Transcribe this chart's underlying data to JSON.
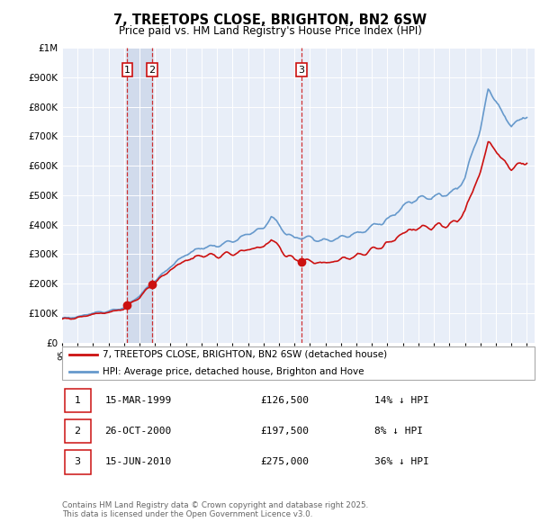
{
  "title": "7, TREETOPS CLOSE, BRIGHTON, BN2 6SW",
  "subtitle": "Price paid vs. HM Land Registry's House Price Index (HPI)",
  "ylim": [
    0,
    1000000
  ],
  "yticks": [
    0,
    100000,
    200000,
    300000,
    400000,
    500000,
    600000,
    700000,
    800000,
    900000,
    1000000
  ],
  "plot_bg": "#e8eef8",
  "hpi_color": "#6699cc",
  "price_color": "#cc1111",
  "vline_color": "#cc1111",
  "shade_color": "#c8d4e8",
  "transactions": [
    {
      "num": 1,
      "year": 1999.21,
      "price": 126500
    },
    {
      "num": 2,
      "year": 2000.82,
      "price": 197500
    },
    {
      "num": 3,
      "year": 2010.45,
      "price": 275000
    }
  ],
  "legend_property": "7, TREETOPS CLOSE, BRIGHTON, BN2 6SW (detached house)",
  "legend_hpi": "HPI: Average price, detached house, Brighton and Hove",
  "footnote": "Contains HM Land Registry data © Crown copyright and database right 2025.\nThis data is licensed under the Open Government Licence v3.0.",
  "table_rows": [
    {
      "num": 1,
      "date": "15-MAR-1999",
      "price": "£126,500",
      "pct": "14% ↓ HPI"
    },
    {
      "num": 2,
      "date": "26-OCT-2000",
      "price": "£197,500",
      "pct": "8% ↓ HPI"
    },
    {
      "num": 3,
      "date": "15-JUN-2010",
      "price": "£275,000",
      "pct": "36% ↓ HPI"
    }
  ]
}
